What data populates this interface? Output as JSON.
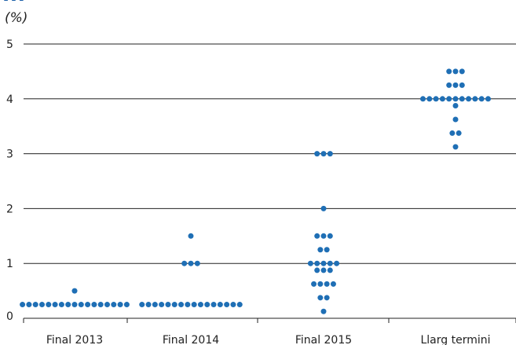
{
  "title_fragment": "...",
  "chart_data": {
    "type": "scatter",
    "unit_label": "(%)",
    "categories": [
      "Final 2013",
      "Final 2014",
      "Final 2015",
      "Llarg termini"
    ],
    "yticks": [
      "0",
      "1",
      "2",
      "3",
      "4",
      "5"
    ],
    "ylim": [
      0,
      5
    ],
    "grid": true,
    "points": [
      [
        {
          "y": 0.25,
          "n": 17
        },
        {
          "y": 0.5,
          "n": 1
        }
      ],
      [
        {
          "y": 0.25,
          "n": 16
        },
        {
          "y": 1.0,
          "n": 3
        },
        {
          "y": 1.5,
          "n": 1
        }
      ],
      [
        {
          "y": 0.125,
          "n": 1
        },
        {
          "y": 0.375,
          "n": 2
        },
        {
          "y": 0.625,
          "n": 4
        },
        {
          "y": 0.875,
          "n": 3
        },
        {
          "y": 1.0,
          "n": 5
        },
        {
          "y": 1.25,
          "n": 2
        },
        {
          "y": 1.5,
          "n": 3
        },
        {
          "y": 2.0,
          "n": 1
        },
        {
          "y": 3.0,
          "n": 3
        }
      ],
      [
        {
          "y": 3.125,
          "n": 1
        },
        {
          "y": 3.375,
          "n": 2
        },
        {
          "y": 3.625,
          "n": 1
        },
        {
          "y": 3.875,
          "n": 1
        },
        {
          "y": 4.0,
          "n": 11
        },
        {
          "y": 4.25,
          "n": 3
        },
        {
          "y": 4.5,
          "n": 3
        }
      ]
    ],
    "dot_color": "#1f6fb5",
    "gridline_color": "#222222"
  }
}
